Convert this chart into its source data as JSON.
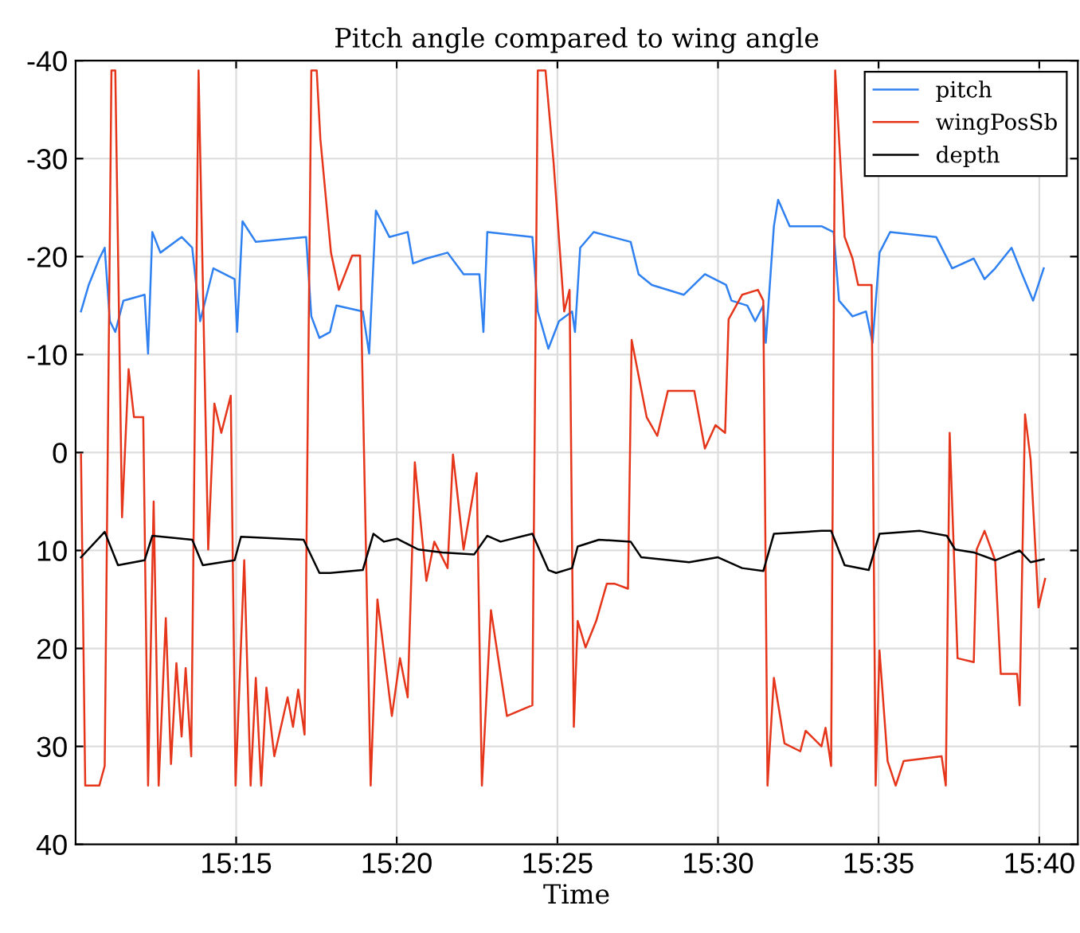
{
  "chart_data": {
    "type": "line",
    "title": "Pitch angle compared to wing angle",
    "xlabel": "Time",
    "xlim": [
      15.1667,
      15.6867
    ],
    "xticks": [
      {
        "value": 15.25,
        "label": "15:15"
      },
      {
        "value": 15.3333,
        "label": "15:20"
      },
      {
        "value": 15.4167,
        "label": "15:25"
      },
      {
        "value": 15.5,
        "label": "15:30"
      },
      {
        "value": 15.5833,
        "label": "15:35"
      },
      {
        "value": 15.6667,
        "label": "15:40"
      }
    ],
    "ylim": [
      40,
      -40
    ],
    "yticks": [
      -40,
      -30,
      -20,
      -10,
      0,
      10,
      20,
      30,
      40
    ],
    "grid": true,
    "legend": "top right",
    "marker": "none",
    "line_style": "solid",
    "series": [
      {
        "name": "pitch",
        "color": "#2f80f0",
        "x": [
          15.1695,
          15.1735,
          15.179,
          15.1818,
          15.1845,
          15.1873,
          15.1915,
          15.2025,
          15.2043,
          15.2065,
          15.2107,
          15.2217,
          15.2272,
          15.2313,
          15.2382,
          15.2492,
          15.2505,
          15.2533,
          15.2602,
          15.2863,
          15.289,
          15.2932,
          15.2987,
          15.302,
          15.3157,
          15.319,
          15.3225,
          15.3295,
          15.339,
          15.3418,
          15.3487,
          15.3597,
          15.368,
          15.3762,
          15.3783,
          15.3803,
          15.4037,
          15.4065,
          15.412,
          15.4175,
          15.4243,
          15.4258,
          15.4285,
          15.4355,
          15.4547,
          15.4588,
          15.4657,
          15.4822,
          15.4932,
          15.5042,
          15.507,
          15.5152,
          15.5193,
          15.5235,
          15.5248,
          15.529,
          15.5312,
          15.5372,
          15.5537,
          15.56,
          15.5628,
          15.5698,
          15.5768,
          15.5802,
          15.5838,
          15.5893,
          15.6132,
          15.6215,
          15.6327,
          15.6383,
          15.6438,
          15.6523,
          15.6578,
          15.6635,
          15.669
        ],
        "values": [
          -14.4,
          -17.1,
          -19.8,
          -20.9,
          -13.4,
          -12.3,
          -15.5,
          -16.1,
          -10.1,
          -22.5,
          -20.4,
          -22,
          -20.9,
          -13.4,
          -18.8,
          -17.7,
          -12.3,
          -23.6,
          -21.5,
          -22,
          -13.9,
          -11.7,
          -12.3,
          -15,
          -14.4,
          -10.1,
          -24.7,
          -22,
          -22.5,
          -19.3,
          -19.8,
          -20.4,
          -18.2,
          -18.2,
          -12.3,
          -22.5,
          -22,
          -14.4,
          -10.6,
          -13.4,
          -14.4,
          -12.3,
          -20.9,
          -22.5,
          -21.5,
          -18.2,
          -17.1,
          -16.1,
          -18.2,
          -17.1,
          -15.5,
          -15,
          -13.4,
          -15,
          -11.2,
          -23.1,
          -25.8,
          -23.1,
          -23.1,
          -22.5,
          -15.5,
          -13.9,
          -14.4,
          -11.2,
          -20.4,
          -22.5,
          -22,
          -18.8,
          -19.8,
          -17.7,
          -18.8,
          -20.9,
          -18.2,
          -15.5,
          -18.8
        ]
      },
      {
        "name": "wingPosSb",
        "color": "#e5361b",
        "x": [
          15.1695,
          15.1717,
          15.179,
          15.1818,
          15.1853,
          15.1873,
          15.1908,
          15.1942,
          15.197,
          15.2018,
          15.2043,
          15.2072,
          15.2098,
          15.2135,
          15.2162,
          15.219,
          15.2217,
          15.2238,
          15.2267,
          15.2305,
          15.2355,
          15.2387,
          15.2423,
          15.2472,
          15.2497,
          15.2542,
          15.2575,
          15.2602,
          15.263,
          15.2657,
          15.2698,
          15.2767,
          15.2795,
          15.2822,
          15.2855,
          15.289,
          15.2918,
          15.2937,
          15.2992,
          15.3033,
          15.3102,
          15.3143,
          15.3198,
          15.3233,
          15.3308,
          15.335,
          15.339,
          15.3427,
          15.3487,
          15.3528,
          15.3597,
          15.3625,
          15.368,
          15.3748,
          15.3775,
          15.3822,
          15.3905,
          15.4037,
          15.4065,
          15.4105,
          15.4147,
          15.4202,
          15.423,
          15.4252,
          15.4272,
          15.4313,
          15.4368,
          15.4423,
          15.4465,
          15.4533,
          15.4552,
          15.463,
          15.4685,
          15.474,
          15.4877,
          15.4932,
          15.4987,
          15.5037,
          15.5055,
          15.5125,
          15.5207,
          15.5235,
          15.5257,
          15.529,
          15.5345,
          15.5427,
          15.5455,
          15.5537,
          15.5558,
          15.5587,
          15.5608,
          15.5657,
          15.5698,
          15.5727,
          15.5797,
          15.5818,
          15.5838,
          15.588,
          15.5922,
          15.5963,
          15.616,
          15.6182,
          15.6202,
          15.6243,
          15.6327,
          15.6342,
          15.6383,
          15.6438,
          15.6467,
          15.6552,
          15.6565,
          15.6593,
          15.6622,
          15.6663,
          15.6697
        ],
        "values": [
          0.2,
          34,
          34,
          32,
          -39,
          -39,
          6.6,
          -8.5,
          -3.6,
          -3.6,
          34,
          5,
          34,
          16.9,
          31.8,
          21.5,
          29,
          22,
          31,
          -39,
          9.9,
          -5,
          -2,
          -5.8,
          34,
          11,
          34,
          23,
          34,
          24,
          31,
          25,
          28,
          24.2,
          28.8,
          -39,
          -39,
          -32,
          -20.4,
          -16.6,
          -20.1,
          -20.1,
          34,
          15,
          26.9,
          21,
          25,
          1,
          13.1,
          9.1,
          11.8,
          0.2,
          9.9,
          2.1,
          34,
          16.1,
          26.9,
          25.8,
          -39,
          -39,
          -29.6,
          -14.4,
          -16.6,
          28,
          17.2,
          19.9,
          17.2,
          13.4,
          13.4,
          13.9,
          -11.5,
          -3.6,
          -1.7,
          -6.3,
          -6.3,
          -0.4,
          -2.8,
          -2,
          -13.6,
          -16.1,
          -16.6,
          -15.5,
          34,
          23,
          29.7,
          30.5,
          28.4,
          30,
          28.1,
          32,
          -39,
          -22,
          -19.8,
          -17.1,
          -17.1,
          34,
          20.2,
          31.5,
          34,
          31.5,
          31,
          34,
          -2,
          21,
          21.4,
          9.9,
          8,
          11,
          22.6,
          22.6,
          25.8,
          -3.9,
          0.7,
          15.8,
          12.9
        ]
      },
      {
        "name": "depth",
        "color": "#000000",
        "x": [
          15.1695,
          15.1818,
          15.1887,
          15.2025,
          15.2065,
          15.2272,
          15.2327,
          15.2492,
          15.2525,
          15.285,
          15.2932,
          15.2987,
          15.3157,
          15.3212,
          15.3267,
          15.3335,
          15.3445,
          15.357,
          15.3735,
          15.3803,
          15.3872,
          15.4037,
          15.412,
          15.416,
          15.4243,
          15.4272,
          15.4382,
          15.4547,
          15.4602,
          15.485,
          15.5,
          15.5125,
          15.5235,
          15.529,
          15.5537,
          15.5587,
          15.5657,
          15.5782,
          15.5838,
          15.6048,
          15.6187,
          15.623,
          15.6327,
          15.6438,
          15.6565,
          15.6622,
          15.669
        ],
        "values": [
          10.7,
          8.1,
          11.5,
          11,
          8.5,
          8.9,
          11.5,
          11,
          8.6,
          8.9,
          12.3,
          12.3,
          12,
          8.3,
          9.1,
          8.8,
          9.9,
          10.2,
          10.4,
          8.5,
          9.1,
          8.3,
          12,
          12.3,
          11.8,
          9.6,
          8.9,
          9.1,
          10.7,
          11.2,
          10.7,
          11.8,
          12.1,
          8.3,
          8,
          8,
          11.5,
          12,
          8.3,
          8,
          8.5,
          9.9,
          10.2,
          11,
          10,
          11.2,
          10.9
        ]
      }
    ]
  }
}
